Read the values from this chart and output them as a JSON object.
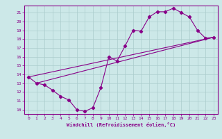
{
  "xlabel": "Windchill (Refroidissement éolien,°C)",
  "bg_color": "#cce8e8",
  "line_color": "#880088",
  "grid_color": "#aacccc",
  "xlim": [
    -0.5,
    23.5
  ],
  "ylim": [
    9.5,
    21.8
  ],
  "xticks": [
    0,
    1,
    2,
    3,
    4,
    5,
    6,
    7,
    8,
    9,
    10,
    11,
    12,
    13,
    14,
    15,
    16,
    17,
    18,
    19,
    20,
    21,
    22,
    23
  ],
  "yticks": [
    10,
    11,
    12,
    13,
    14,
    15,
    16,
    17,
    18,
    19,
    20,
    21
  ],
  "line1_x": [
    0,
    1,
    2,
    3,
    4,
    5,
    6,
    7,
    8,
    9,
    10,
    11,
    12,
    13,
    14,
    15,
    16,
    17,
    18,
    19,
    20,
    21,
    22,
    23
  ],
  "line1_y": [
    13.7,
    13.0,
    12.8,
    12.2,
    11.5,
    11.1,
    10.0,
    9.8,
    10.2,
    12.5,
    16.0,
    15.5,
    17.2,
    19.0,
    18.9,
    20.5,
    21.1,
    21.1,
    21.5,
    21.0,
    20.5,
    19.0,
    18.1,
    18.2
  ],
  "line2_x": [
    0,
    23
  ],
  "line2_y": [
    13.7,
    18.2
  ],
  "line3_x": [
    1,
    23
  ],
  "line3_y": [
    13.0,
    18.2
  ]
}
